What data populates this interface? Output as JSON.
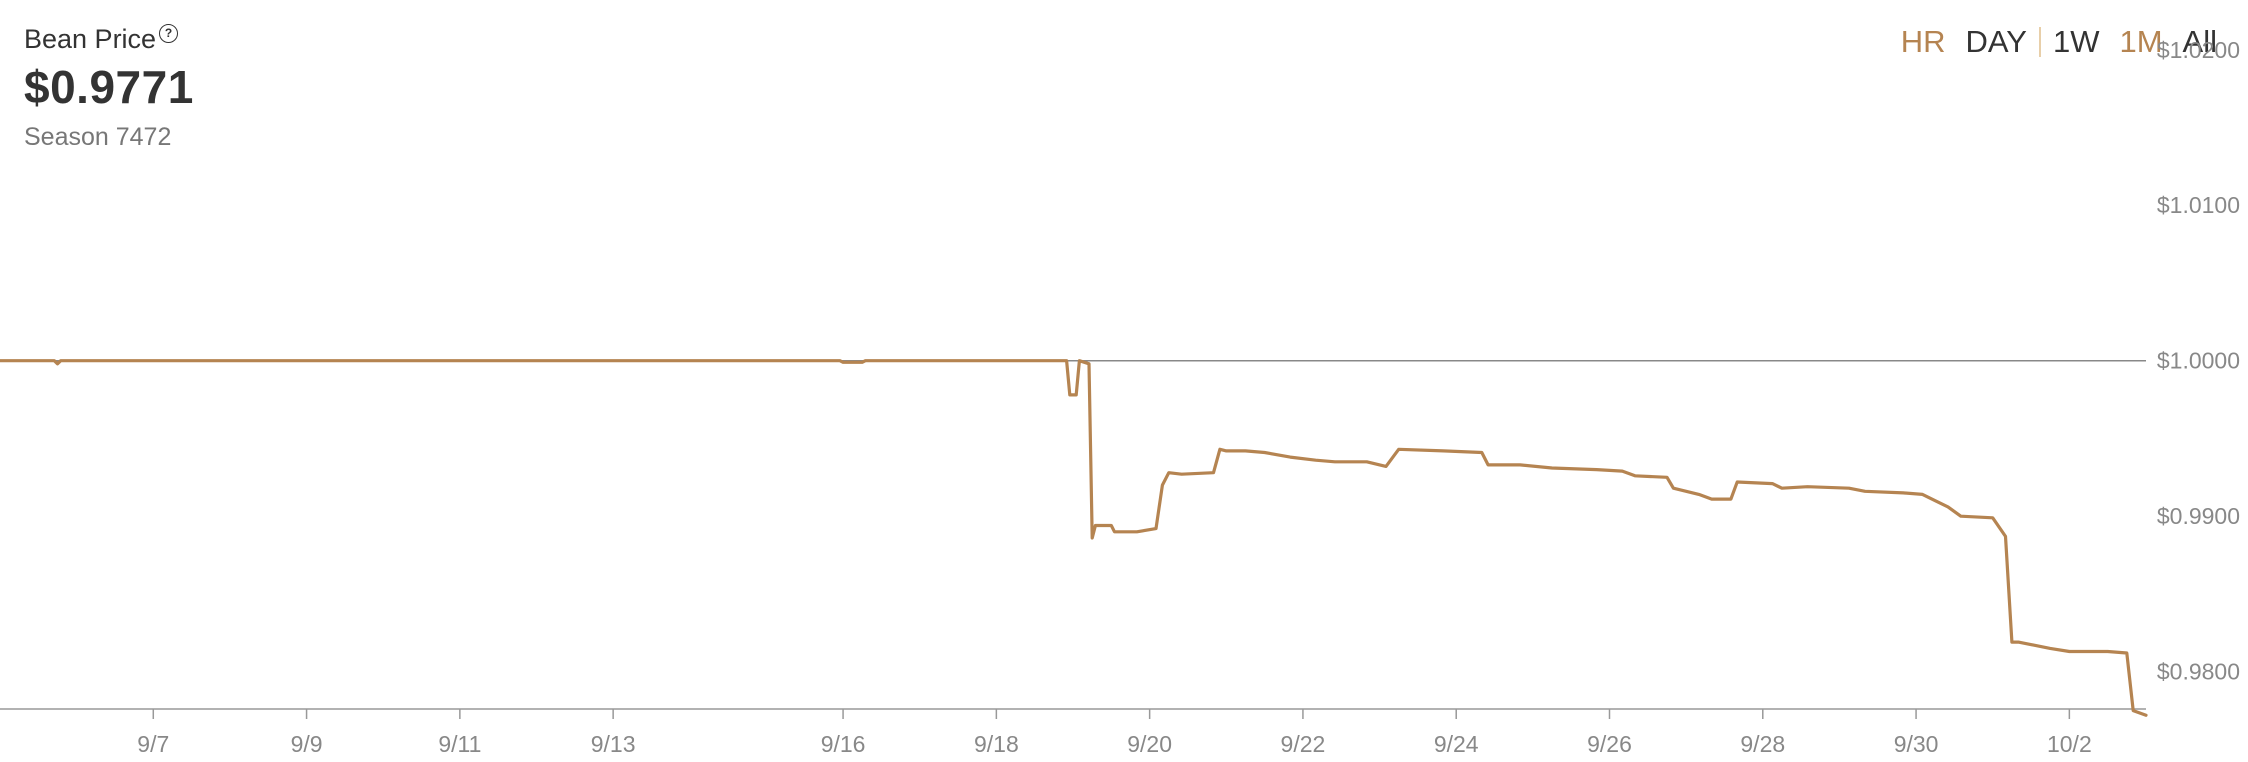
{
  "header": {
    "title": "Bean Price",
    "help_icon": "question-circle-icon",
    "price": "$0.9771",
    "season": "Season 7472"
  },
  "range_buttons": [
    {
      "label": "HR",
      "accent": true
    },
    {
      "label": "DAY",
      "accent": false
    },
    {
      "label": "1W",
      "accent": false
    },
    {
      "label": "1M",
      "accent": true
    },
    {
      "label": "All",
      "accent": false
    }
  ],
  "colors": {
    "line": "#b58451",
    "accent": "#b58451",
    "reference_line": "#888888",
    "axis_text": "#888888"
  },
  "chart_data": {
    "type": "line",
    "x_range": [
      "9/5",
      "10/3"
    ],
    "ylim": [
      0.9776,
      1.0232
    ],
    "reference_line": 1.0,
    "grid": false,
    "x_ticks": [
      {
        "date": "9/7",
        "label": "9/7"
      },
      {
        "date": "9/9",
        "label": "9/9"
      },
      {
        "date": "9/11",
        "label": "9/11"
      },
      {
        "date": "9/13",
        "label": "9/13"
      },
      {
        "date": "9/16",
        "label": "9/16"
      },
      {
        "date": "9/18",
        "label": "9/18"
      },
      {
        "date": "9/20",
        "label": "9/20"
      },
      {
        "date": "9/22",
        "label": "9/22"
      },
      {
        "date": "9/24",
        "label": "9/24"
      },
      {
        "date": "9/26",
        "label": "9/26"
      },
      {
        "date": "9/28",
        "label": "9/28"
      },
      {
        "date": "9/30",
        "label": "9/30"
      },
      {
        "date": "10/2",
        "label": "10/2"
      }
    ],
    "y_ticks": [
      {
        "value": 1.02,
        "label": "$1.0200"
      },
      {
        "value": 1.01,
        "label": "$1.0100"
      },
      {
        "value": 1.0,
        "label": "$1.0000"
      },
      {
        "value": 0.99,
        "label": "$0.9900"
      },
      {
        "value": 0.98,
        "label": "$0.9800"
      }
    ],
    "series": [
      {
        "values": [
          [
            "9/5",
            1.0
          ],
          [
            "9/5 17:00",
            1.0
          ],
          [
            "9/5 18:00",
            0.9998
          ],
          [
            "9/5 19:00",
            1.0
          ],
          [
            "9/15 23:00",
            1.0
          ],
          [
            "9/16",
            0.9999
          ],
          [
            "9/16 06:00",
            0.9999
          ],
          [
            "9/16 07:00",
            1.0
          ],
          [
            "9/18 22:00",
            1.0
          ],
          [
            "9/18 23:00",
            0.9978
          ],
          [
            "9/19 01:00",
            0.9978
          ],
          [
            "9/19 02:00",
            1.0
          ],
          [
            "9/19 05:00",
            0.9998
          ],
          [
            "9/19 06:00",
            0.9886
          ],
          [
            "9/19 07:00",
            0.9894
          ],
          [
            "9/19 12:00",
            0.9894
          ],
          [
            "9/19 13:00",
            0.989
          ],
          [
            "9/19 20:00",
            0.989
          ],
          [
            "9/20 02:00",
            0.9892
          ],
          [
            "9/20 04:00",
            0.992
          ],
          [
            "9/20 06:00",
            0.9928
          ],
          [
            "9/20 10:00",
            0.9927
          ],
          [
            "9/20 20:00",
            0.9928
          ],
          [
            "9/20 22:00",
            0.9943
          ],
          [
            "9/21",
            0.9942
          ],
          [
            "9/21 06:00",
            0.9942
          ],
          [
            "9/21 12:00",
            0.9941
          ],
          [
            "9/21 20:00",
            0.9938
          ],
          [
            "9/22 04:00",
            0.9936
          ],
          [
            "9/22 10:00",
            0.9935
          ],
          [
            "9/22 20:00",
            0.9935
          ],
          [
            "9/23 02:00",
            0.9932
          ],
          [
            "9/23 06:00",
            0.9943
          ],
          [
            "9/23 20:00",
            0.9942
          ],
          [
            "9/24 08:00",
            0.9941
          ],
          [
            "9/24 10:00",
            0.9933
          ],
          [
            "9/24 20:00",
            0.9933
          ],
          [
            "9/25 06:00",
            0.9931
          ],
          [
            "9/25 20:00",
            0.993
          ],
          [
            "9/26 04:00",
            0.9929
          ],
          [
            "9/26 08:00",
            0.9926
          ],
          [
            "9/26 18:00",
            0.9925
          ],
          [
            "9/26 20:00",
            0.9918
          ],
          [
            "9/27 04:00",
            0.9914
          ],
          [
            "9/27 08:00",
            0.9911
          ],
          [
            "9/27 14:00",
            0.9911
          ],
          [
            "9/27 16:00",
            0.9922
          ],
          [
            "9/28 03:00",
            0.9921
          ],
          [
            "9/28 06:00",
            0.9918
          ],
          [
            "9/28 14:00",
            0.9919
          ],
          [
            "9/29 03:00",
            0.9918
          ],
          [
            "9/29 08:00",
            0.9916
          ],
          [
            "9/29 20:00",
            0.9915
          ],
          [
            "9/30 02:00",
            0.9914
          ],
          [
            "9/30 06:00",
            0.991
          ],
          [
            "9/30 10:00",
            0.9906
          ],
          [
            "9/30 14:00",
            0.99
          ],
          [
            "10/1",
            0.9899
          ],
          [
            "10/1 04:00",
            0.9887
          ],
          [
            "10/1 06:00",
            0.9819
          ],
          [
            "10/1 08:00",
            0.9819
          ],
          [
            "10/1 18:00",
            0.9815
          ],
          [
            "10/2",
            0.9813
          ],
          [
            "10/2 12:00",
            0.9813
          ],
          [
            "10/2 18:00",
            0.9812
          ],
          [
            "10/2 20:00",
            0.9775
          ],
          [
            "10/3",
            0.9772
          ]
        ]
      }
    ]
  }
}
